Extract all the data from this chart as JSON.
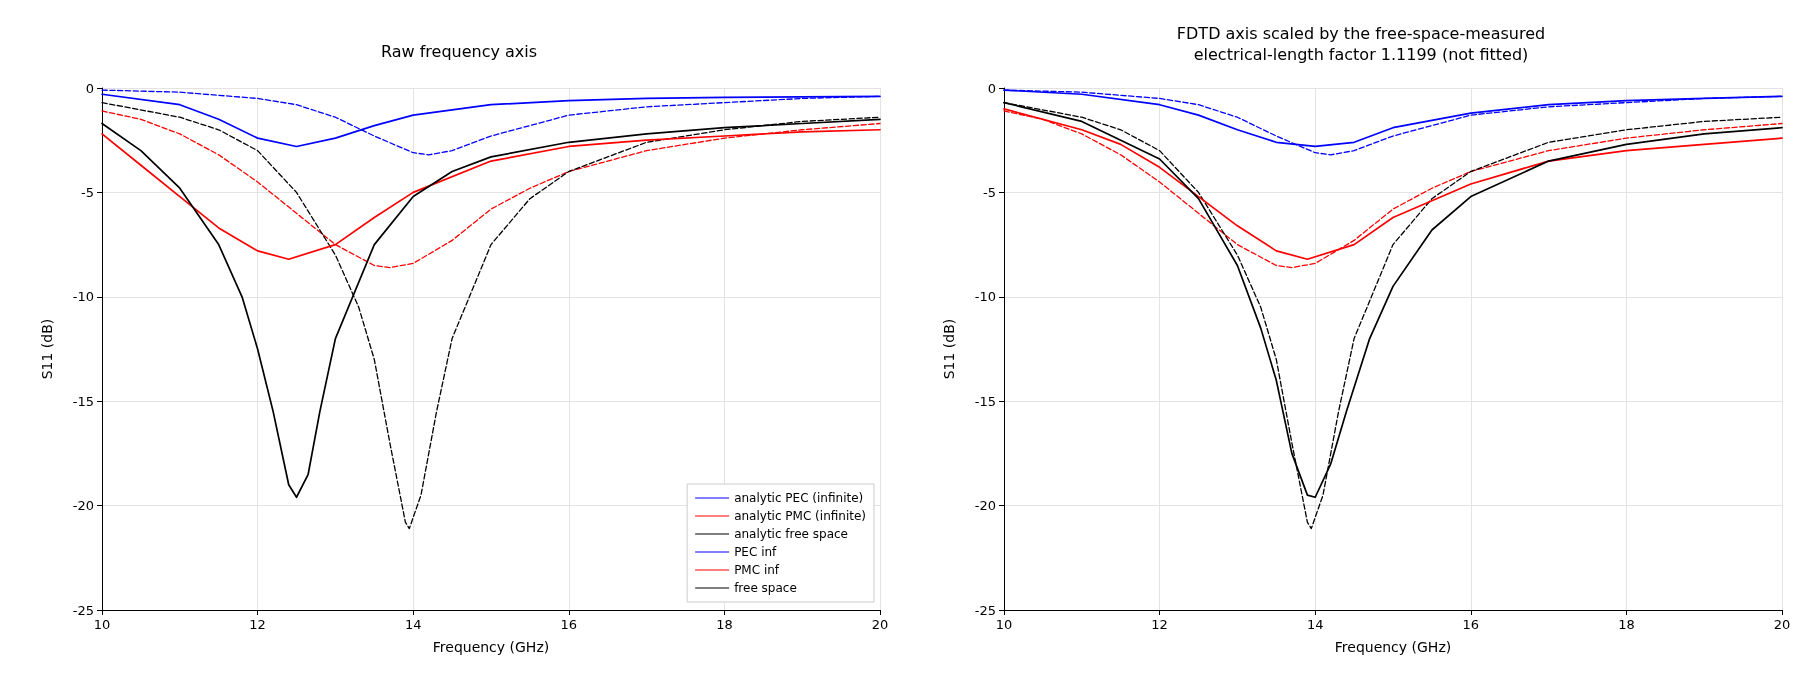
{
  "chart_data": [
    {
      "type": "line",
      "title": "Raw frequency axis",
      "xlabel": "Frequency (GHz)",
      "ylabel": "S11 (dB)",
      "xlim": [
        10,
        20
      ],
      "xticks": [
        10,
        12,
        14,
        16,
        18,
        20
      ],
      "ylim": [
        -25,
        0
      ],
      "yticks": [
        -25,
        -20,
        -15,
        -10,
        -5,
        0
      ],
      "grid": true,
      "legend": "bottom right",
      "marker": "none",
      "series": [
        {
          "name": "analytic PEC (infinite)",
          "color": "#0000ff",
          "line_style": "dashed",
          "x": [
            10,
            11,
            12,
            12.5,
            13,
            13.5,
            14,
            14.2,
            14.5,
            15,
            16,
            17,
            18,
            19,
            20
          ],
          "values": [
            -0.1,
            -0.2,
            -0.5,
            -0.8,
            -1.4,
            -2.3,
            -3.1,
            -3.2,
            -3.0,
            -2.3,
            -1.3,
            -0.9,
            -0.7,
            -0.5,
            -0.4
          ]
        },
        {
          "name": "analytic PMC (infinite)",
          "color": "#ff0000",
          "line_style": "dashed",
          "x": [
            10,
            10.5,
            11,
            11.5,
            12,
            12.5,
            13,
            13.5,
            13.7,
            14,
            14.5,
            15,
            15.5,
            16,
            17,
            18,
            19,
            20
          ],
          "values": [
            -1.1,
            -1.5,
            -2.2,
            -3.2,
            -4.5,
            -6.0,
            -7.5,
            -8.5,
            -8.6,
            -8.4,
            -7.3,
            -5.8,
            -4.8,
            -4.0,
            -3.0,
            -2.4,
            -2.0,
            -1.7
          ]
        },
        {
          "name": "analytic free space",
          "color": "#000000",
          "line_style": "dashed",
          "x": [
            10,
            11,
            11.5,
            12,
            12.5,
            13,
            13.3,
            13.5,
            13.7,
            13.9,
            13.95,
            14.1,
            14.3,
            14.5,
            15,
            15.5,
            16,
            17,
            18,
            19,
            20
          ],
          "values": [
            -0.7,
            -1.4,
            -2.0,
            -3.0,
            -5.0,
            -8.0,
            -10.5,
            -13,
            -17,
            -20.8,
            -21.1,
            -19.5,
            -15.5,
            -12,
            -7.5,
            -5.3,
            -4.0,
            -2.6,
            -2.0,
            -1.6,
            -1.4
          ]
        },
        {
          "name": "PEC inf",
          "color": "#0000ff",
          "line_style": "solid",
          "x": [
            10,
            11,
            11.5,
            12,
            12.5,
            13,
            13.5,
            14,
            15,
            16,
            17,
            18,
            20
          ],
          "values": [
            -0.3,
            -0.8,
            -1.5,
            -2.4,
            -2.8,
            -2.4,
            -1.8,
            -1.3,
            -0.8,
            -0.6,
            -0.5,
            -0.45,
            -0.4
          ]
        },
        {
          "name": "PMC inf",
          "color": "#ff0000",
          "line_style": "solid",
          "x": [
            10,
            10.5,
            11,
            11.5,
            12,
            12.4,
            13,
            13.5,
            14,
            15,
            16,
            17,
            18,
            19,
            20
          ],
          "values": [
            -2.2,
            -3.7,
            -5.2,
            -6.7,
            -7.8,
            -8.2,
            -7.5,
            -6.2,
            -5.0,
            -3.5,
            -2.8,
            -2.5,
            -2.3,
            -2.1,
            -2.0
          ]
        },
        {
          "name": "free space",
          "color": "#000000",
          "line_style": "solid",
          "x": [
            10,
            10.5,
            11,
            11.5,
            11.8,
            12,
            12.2,
            12.4,
            12.5,
            12.65,
            12.8,
            13,
            13.5,
            14,
            14.5,
            15,
            16,
            17,
            18,
            19,
            20
          ],
          "values": [
            -1.7,
            -3.0,
            -4.8,
            -7.5,
            -10,
            -12.5,
            -15.5,
            -19,
            -19.6,
            -18.5,
            -15.5,
            -12,
            -7.5,
            -5.2,
            -4.0,
            -3.3,
            -2.6,
            -2.2,
            -1.9,
            -1.7,
            -1.5
          ]
        }
      ]
    },
    {
      "type": "line",
      "title": "FDTD axis scaled by the free-space-measured\nelectrical-length factor 1.1199 (not fitted)",
      "xlabel": "Frequency (GHz)",
      "ylabel": "S11 (dB)",
      "xlim": [
        10,
        20
      ],
      "xticks": [
        10,
        12,
        14,
        16,
        18,
        20
      ],
      "ylim": [
        -25,
        0
      ],
      "yticks": [
        -25,
        -20,
        -15,
        -10,
        -5,
        0
      ],
      "grid": true,
      "marker": "none",
      "series": [
        {
          "color": "#0000ff",
          "line_style": "dashed",
          "x": [
            10,
            11,
            12,
            12.5,
            13,
            13.5,
            14,
            14.2,
            14.5,
            15,
            16,
            17,
            18,
            19,
            20
          ],
          "values": [
            -0.1,
            -0.2,
            -0.5,
            -0.8,
            -1.4,
            -2.3,
            -3.1,
            -3.2,
            -3.0,
            -2.3,
            -1.3,
            -0.9,
            -0.7,
            -0.5,
            -0.4
          ]
        },
        {
          "color": "#ff0000",
          "line_style": "dashed",
          "x": [
            10,
            10.5,
            11,
            11.5,
            12,
            12.5,
            13,
            13.5,
            13.7,
            14,
            14.5,
            15,
            15.5,
            16,
            17,
            18,
            19,
            20
          ],
          "values": [
            -1.1,
            -1.5,
            -2.2,
            -3.2,
            -4.5,
            -6.0,
            -7.5,
            -8.5,
            -8.6,
            -8.4,
            -7.3,
            -5.8,
            -4.8,
            -4.0,
            -3.0,
            -2.4,
            -2.0,
            -1.7
          ]
        },
        {
          "color": "#000000",
          "line_style": "dashed",
          "x": [
            10,
            11,
            11.5,
            12,
            12.5,
            13,
            13.3,
            13.5,
            13.7,
            13.9,
            13.95,
            14.1,
            14.3,
            14.5,
            15,
            15.5,
            16,
            17,
            18,
            19,
            20
          ],
          "values": [
            -0.7,
            -1.4,
            -2.0,
            -3.0,
            -5.0,
            -8.0,
            -10.5,
            -13,
            -17,
            -20.8,
            -21.1,
            -19.5,
            -15.5,
            -12,
            -7.5,
            -5.3,
            -4.0,
            -2.6,
            -2.0,
            -1.6,
            -1.4
          ]
        },
        {
          "color": "#0000ff",
          "line_style": "solid",
          "x": [
            10,
            11,
            12,
            12.5,
            13,
            13.5,
            14,
            14.5,
            15,
            16,
            17,
            18,
            19,
            20
          ],
          "values": [
            -0.1,
            -0.3,
            -0.8,
            -1.3,
            -2.0,
            -2.6,
            -2.8,
            -2.6,
            -1.9,
            -1.2,
            -0.8,
            -0.6,
            -0.5,
            -0.4
          ]
        },
        {
          "color": "#ff0000",
          "line_style": "solid",
          "x": [
            10,
            11,
            11.5,
            12,
            12.5,
            13,
            13.5,
            13.9,
            14.5,
            15,
            16,
            17,
            18,
            19,
            20
          ],
          "values": [
            -1.0,
            -2.0,
            -2.7,
            -3.8,
            -5.2,
            -6.6,
            -7.8,
            -8.2,
            -7.5,
            -6.2,
            -4.6,
            -3.5,
            -3.0,
            -2.7,
            -2.4
          ]
        },
        {
          "color": "#000000",
          "line_style": "solid",
          "x": [
            10,
            11,
            12,
            12.5,
            13,
            13.3,
            13.5,
            13.7,
            13.9,
            14.0,
            14.2,
            14.4,
            14.7,
            15,
            15.5,
            16,
            17,
            18,
            19,
            20
          ],
          "values": [
            -0.7,
            -1.6,
            -3.4,
            -5.3,
            -8.5,
            -11.5,
            -14,
            -17.5,
            -19.5,
            -19.6,
            -18,
            -15.5,
            -12,
            -9.5,
            -6.8,
            -5.2,
            -3.5,
            -2.7,
            -2.2,
            -1.9
          ]
        }
      ]
    }
  ]
}
